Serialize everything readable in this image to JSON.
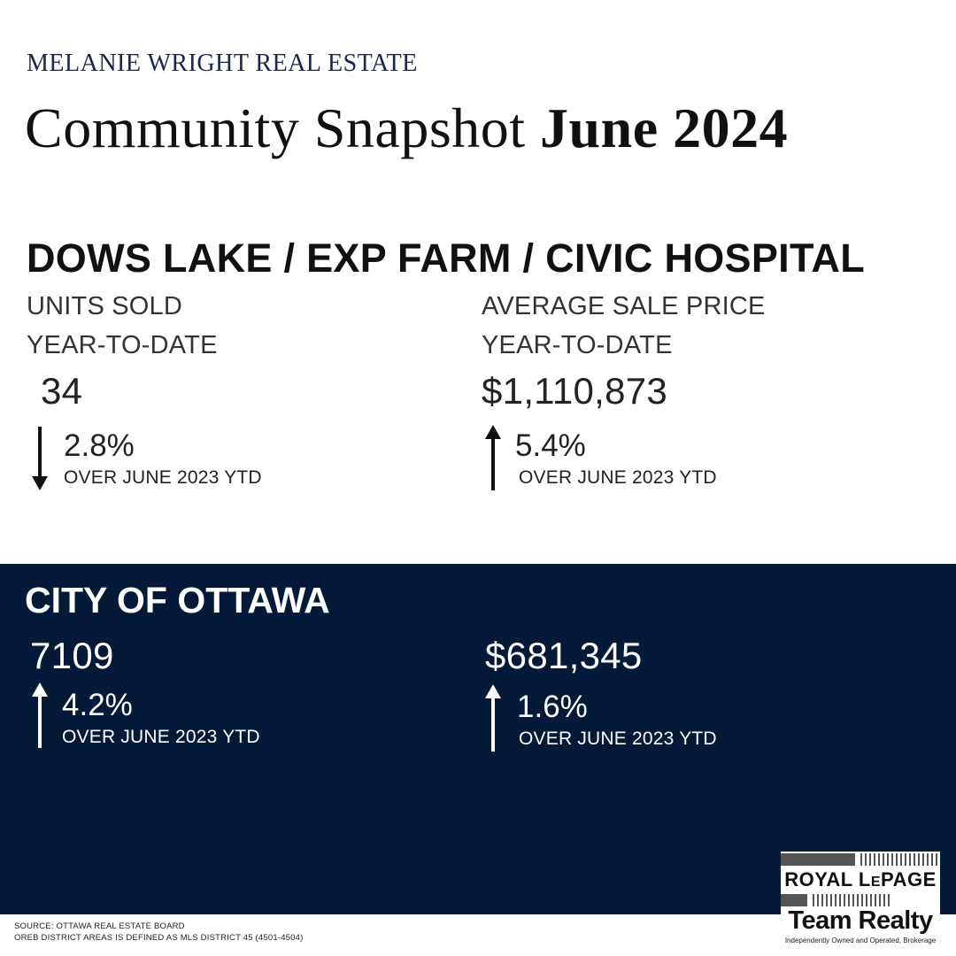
{
  "header": {
    "brand": "MELANIE WRIGHT REAL ESTATE",
    "title_prefix": "Community Snapshot ",
    "title_bold": "June 2024"
  },
  "community": {
    "name": "DOWS LAKE / EXP FARM / CIVIC HOSPITAL",
    "units": {
      "label": "UNITS SOLD",
      "period": "YEAR-TO-DATE",
      "value": "34",
      "change": "2.8%",
      "direction": "down",
      "comparison": "OVER JUNE 2023 YTD"
    },
    "price": {
      "label": "AVERAGE SALE PRICE",
      "period": "YEAR-TO-DATE",
      "value": "$1,110,873",
      "change": "5.4%",
      "direction": "up",
      "comparison": "OVER JUNE 2023 YTD"
    }
  },
  "city": {
    "name": "CITY OF OTTAWA",
    "units": {
      "value": "7109",
      "change": "4.2%",
      "direction": "up",
      "comparison": "OVER JUNE 2023 YTD"
    },
    "price": {
      "value": "$681,345",
      "change": "1.6%",
      "direction": "up",
      "comparison": "OVER JUNE 2023 YTD"
    }
  },
  "footer": {
    "source": "SOURCE: OTTAWA REAL ESTATE BOARD",
    "note": "OREB DISTRICT AREAS IS DEFINED AS MLS DISTRICT 45 (4501-4504)"
  },
  "logo": {
    "line1_main": "ROYAL L",
    "line1_small": "E",
    "line1_end": "PAGE",
    "line2": "Team Realty",
    "tagline": "Independently Owned and Operated, Brokerage"
  },
  "colors": {
    "navy": "#051938",
    "brand_text": "#1c2450"
  }
}
